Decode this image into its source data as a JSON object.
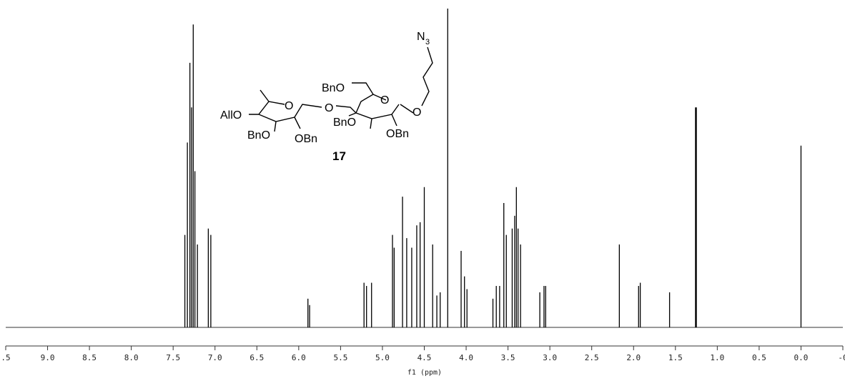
{
  "chart_data": {
    "type": "spectrum",
    "x_label": "f1 (ppm)",
    "xlim": [
      9.5,
      -0.5
    ],
    "ylim": [
      0,
      100
    ],
    "xticks": [
      {
        "value": 9.5,
        "label": ".5"
      },
      {
        "value": 9,
        "label": "9.0"
      },
      8.5,
      {
        "value": 8,
        "label": "8.0"
      },
      7.5,
      {
        "value": 7,
        "label": "7.0"
      },
      6.5,
      {
        "value": 6,
        "label": "6.0"
      },
      5.5,
      {
        "value": 5,
        "label": "5.0"
      },
      4.5,
      {
        "value": 4,
        "label": "4.0"
      },
      3.5,
      {
        "value": 3,
        "label": "3.0"
      },
      2.5,
      {
        "value": 2,
        "label": "2.0"
      },
      1.5,
      {
        "value": 1,
        "label": "1.0"
      },
      0.5,
      {
        "value": 0,
        "label": "0.0"
      },
      {
        "value": -0.5,
        "label": "-0"
      }
    ],
    "color": "#000000",
    "x": [
      7.36,
      7.33,
      7.3,
      7.28,
      7.26,
      7.24,
      7.21,
      7.08,
      7.05,
      5.89,
      5.87,
      5.22,
      5.19,
      5.13,
      4.88,
      4.86,
      4.76,
      4.71,
      4.65,
      4.59,
      4.55,
      4.5,
      4.4,
      4.35,
      4.31,
      4.22,
      4.06,
      4.02,
      3.99,
      3.68,
      3.64,
      3.6,
      3.55,
      3.52,
      3.45,
      3.42,
      3.4,
      3.38,
      3.35,
      3.12,
      3.07,
      3.05,
      2.17,
      1.94,
      1.92,
      1.57,
      1.26,
      1.25,
      0.0
    ],
    "values": [
      29,
      58,
      83,
      69,
      95,
      49,
      26,
      31,
      29,
      9,
      7,
      14,
      13,
      14,
      29,
      25,
      41,
      28,
      25,
      32,
      33,
      44,
      26,
      10,
      11,
      100,
      24,
      16,
      12,
      9,
      13,
      13,
      39,
      29,
      31,
      35,
      44,
      31,
      26,
      11,
      13,
      13,
      26,
      13,
      14,
      11,
      69,
      69,
      57
    ]
  },
  "structure": {
    "compound": "17",
    "azide": "N",
    "azide_sub": "3",
    "labels": [
      "BnO",
      "O",
      "O",
      "O",
      "O",
      "AllO",
      "BnO",
      "OBn",
      "BnO",
      "OBn"
    ]
  }
}
